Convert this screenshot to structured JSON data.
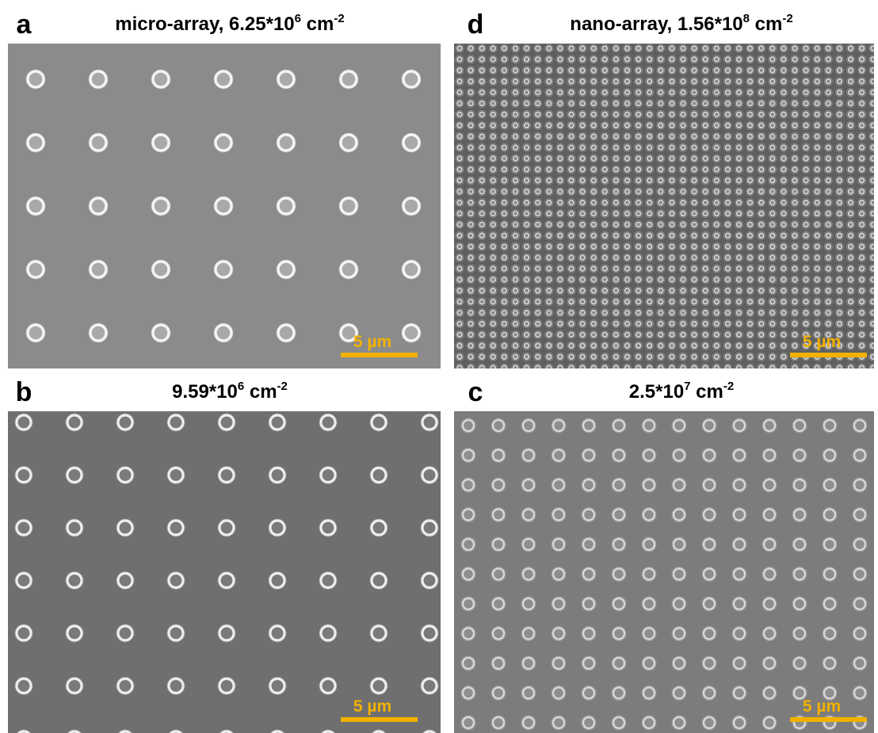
{
  "panels": [
    {
      "letter": "a",
      "title": [
        "micro-array, 6.25*10",
        "6",
        " cm",
        "-2"
      ],
      "scale_bar": "5 µm"
    },
    {
      "letter": "d",
      "title": [
        "nano-array, 1.56*10",
        "8",
        " cm",
        "-2"
      ],
      "scale_bar": "5 µm"
    },
    {
      "letter": "b",
      "title": [
        "9.59*10",
        "6",
        " cm",
        "-2"
      ],
      "scale_bar": "5 µm"
    },
    {
      "letter": "c",
      "title": [
        "2.5*10",
        "7",
        " cm",
        "-2"
      ],
      "scale_bar": "5 µm"
    }
  ]
}
